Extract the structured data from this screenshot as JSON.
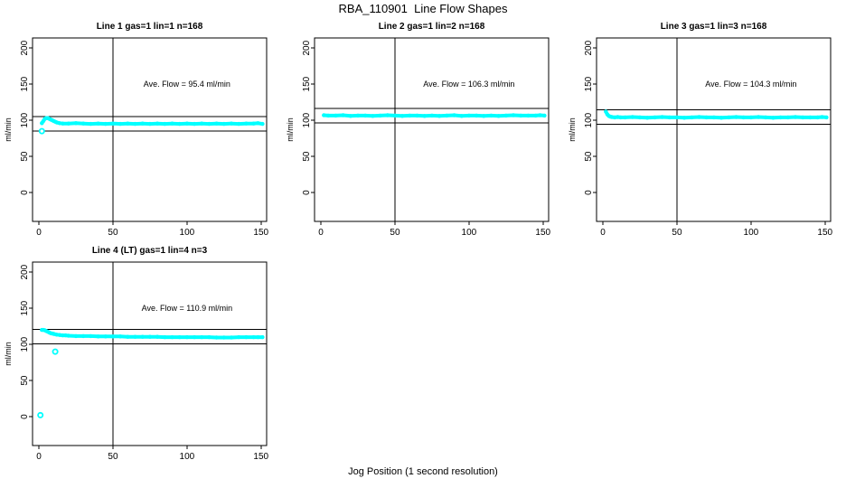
{
  "page": {
    "title": "RBA_110901  Line Flow Shapes",
    "xlabel": "Jog Position (1 second resolution)"
  },
  "colors": {
    "background": "#ffffff",
    "axis": "#000000",
    "text": "#000000",
    "points": "#00ffff"
  },
  "chart_data": [
    {
      "type": "scatter",
      "title": "Line 1 gas=1 lin=1 n=168",
      "ylabel": "ml/min",
      "n": 168,
      "ave_flow": 95.4,
      "ave_flow_label": "Ave. Flow =  95.4  ml/min",
      "annotation_pos": {
        "x": 100,
        "y": 150
      },
      "xlim": [
        -4.3,
        153.8
      ],
      "ylim": [
        -40,
        214
      ],
      "xticks": [
        0,
        50,
        100,
        150
      ],
      "yticks": [
        0,
        50,
        100,
        150,
        200
      ],
      "grid": false,
      "legend": "none",
      "vline_x": 50,
      "hlines": [
        105.4,
        85.4
      ],
      "band": [
        [
          2,
          96
        ],
        [
          3,
          99
        ],
        [
          4,
          102
        ],
        [
          5,
          103
        ],
        [
          6,
          103
        ],
        [
          7,
          102
        ],
        [
          8,
          101
        ],
        [
          9,
          100
        ],
        [
          10,
          99
        ],
        [
          11,
          98
        ],
        [
          12,
          97
        ],
        [
          14,
          96
        ],
        [
          16,
          95.5
        ],
        [
          20,
          95.5
        ],
        [
          25,
          96
        ],
        [
          30,
          95.5
        ],
        [
          35,
          95
        ],
        [
          40,
          95.5
        ],
        [
          45,
          95
        ],
        [
          50,
          95.5
        ],
        [
          55,
          95
        ],
        [
          60,
          95.5
        ],
        [
          65,
          95
        ],
        [
          70,
          95.5
        ],
        [
          75,
          95
        ],
        [
          80,
          95.5
        ],
        [
          85,
          95
        ],
        [
          90,
          95.5
        ],
        [
          95,
          95
        ],
        [
          100,
          95.5
        ],
        [
          105,
          95
        ],
        [
          110,
          95.5
        ],
        [
          115,
          95
        ],
        [
          120,
          95.5
        ],
        [
          125,
          95
        ],
        [
          130,
          95.5
        ],
        [
          135,
          95
        ],
        [
          140,
          95.5
        ],
        [
          145,
          95.5
        ],
        [
          148,
          96
        ],
        [
          151,
          95
        ]
      ],
      "outliers": [
        [
          2,
          85
        ]
      ]
    },
    {
      "type": "scatter",
      "title": "Line 2 gas=1 lin=2 n=168",
      "ylabel": "ml/min",
      "n": 168,
      "ave_flow": 106.3,
      "ave_flow_label": "Ave. Flow =  106.3  ml/min",
      "annotation_pos": {
        "x": 100,
        "y": 150
      },
      "xlim": [
        -4.3,
        153.8
      ],
      "ylim": [
        -40,
        214
      ],
      "xticks": [
        0,
        50,
        100,
        150
      ],
      "yticks": [
        0,
        50,
        100,
        150,
        200
      ],
      "grid": false,
      "legend": "none",
      "vline_x": 50,
      "hlines": [
        116.3,
        96.3
      ],
      "band": [
        [
          2,
          107
        ],
        [
          5,
          106.5
        ],
        [
          10,
          106.5
        ],
        [
          15,
          107
        ],
        [
          20,
          106
        ],
        [
          25,
          106.5
        ],
        [
          30,
          106.5
        ],
        [
          35,
          106
        ],
        [
          40,
          106.5
        ],
        [
          45,
          107
        ],
        [
          50,
          106.5
        ],
        [
          55,
          106
        ],
        [
          60,
          106.5
        ],
        [
          65,
          106.5
        ],
        [
          70,
          106
        ],
        [
          75,
          106.5
        ],
        [
          80,
          106
        ],
        [
          85,
          106.5
        ],
        [
          90,
          107
        ],
        [
          95,
          106
        ],
        [
          100,
          106.5
        ],
        [
          105,
          106.5
        ],
        [
          110,
          106
        ],
        [
          115,
          106.5
        ],
        [
          120,
          106
        ],
        [
          125,
          106.5
        ],
        [
          130,
          107
        ],
        [
          135,
          106.5
        ],
        [
          140,
          106.5
        ],
        [
          145,
          106.5
        ],
        [
          148,
          107
        ],
        [
          151,
          106.5
        ]
      ],
      "outliers": []
    },
    {
      "type": "scatter",
      "title": "Line 3 gas=1 lin=3 n=168",
      "ylabel": "ml/min",
      "n": 168,
      "ave_flow": 104.3,
      "ave_flow_label": "Ave. Flow =  104.3  ml/min",
      "annotation_pos": {
        "x": 100,
        "y": 150
      },
      "xlim": [
        -4.3,
        153.8
      ],
      "ylim": [
        -40,
        214
      ],
      "xticks": [
        0,
        50,
        100,
        150
      ],
      "yticks": [
        0,
        50,
        100,
        150,
        200
      ],
      "grid": false,
      "legend": "none",
      "vline_x": 50,
      "hlines": [
        114.3,
        94.3
      ],
      "band": [
        [
          2,
          112
        ],
        [
          3,
          108
        ],
        [
          4,
          106
        ],
        [
          5,
          105
        ],
        [
          6,
          104.5
        ],
        [
          8,
          104
        ],
        [
          10,
          104.5
        ],
        [
          12,
          104
        ],
        [
          15,
          104
        ],
        [
          20,
          104.5
        ],
        [
          25,
          104
        ],
        [
          30,
          103.5
        ],
        [
          35,
          104
        ],
        [
          40,
          104.5
        ],
        [
          45,
          104
        ],
        [
          50,
          104
        ],
        [
          55,
          103.5
        ],
        [
          60,
          104
        ],
        [
          65,
          104.5
        ],
        [
          70,
          104
        ],
        [
          75,
          104
        ],
        [
          80,
          103.5
        ],
        [
          85,
          104
        ],
        [
          90,
          104.5
        ],
        [
          95,
          104
        ],
        [
          100,
          104
        ],
        [
          105,
          104.5
        ],
        [
          110,
          104
        ],
        [
          115,
          103.5
        ],
        [
          120,
          104
        ],
        [
          125,
          104
        ],
        [
          130,
          104.5
        ],
        [
          135,
          104
        ],
        [
          140,
          104
        ],
        [
          145,
          104
        ],
        [
          148,
          104.5
        ],
        [
          151,
          104
        ]
      ],
      "outliers": []
    },
    {
      "type": "scatter",
      "title": "Line 4 (LT) gas=1 lin=4 n=3",
      "ylabel": "ml/min",
      "n": 3,
      "ave_flow": 110.9,
      "ave_flow_label": "Ave. Flow =  110.9  ml/min",
      "annotation_pos": {
        "x": 100,
        "y": 150
      },
      "xlim": [
        -4.3,
        153.8
      ],
      "ylim": [
        -40,
        214
      ],
      "xticks": [
        0,
        50,
        100,
        150
      ],
      "yticks": [
        0,
        50,
        100,
        150,
        200
      ],
      "grid": false,
      "legend": "none",
      "vline_x": 50,
      "hlines": [
        120.9,
        100.9
      ],
      "band": [
        [
          2,
          120
        ],
        [
          3,
          120
        ],
        [
          4,
          119.5
        ],
        [
          5,
          118.5
        ],
        [
          6,
          117.5
        ],
        [
          7,
          116.5
        ],
        [
          8,
          115.5
        ],
        [
          9,
          115
        ],
        [
          10,
          114.5
        ],
        [
          12,
          113.5
        ],
        [
          14,
          113
        ],
        [
          16,
          112.5
        ],
        [
          18,
          112.5
        ],
        [
          20,
          112
        ],
        [
          25,
          111.5
        ],
        [
          30,
          111.5
        ],
        [
          35,
          111.5
        ],
        [
          40,
          111
        ],
        [
          45,
          111
        ],
        [
          50,
          111
        ],
        [
          55,
          111
        ],
        [
          60,
          110.5
        ],
        [
          65,
          110.5
        ],
        [
          70,
          110.5
        ],
        [
          75,
          110.5
        ],
        [
          80,
          110.5
        ],
        [
          85,
          110
        ],
        [
          90,
          110
        ],
        [
          95,
          110
        ],
        [
          100,
          110
        ],
        [
          105,
          110
        ],
        [
          110,
          110
        ],
        [
          115,
          110
        ],
        [
          120,
          109.5
        ],
        [
          125,
          109.5
        ],
        [
          130,
          109.5
        ],
        [
          135,
          110
        ],
        [
          140,
          110
        ],
        [
          145,
          110
        ],
        [
          148,
          110
        ],
        [
          151,
          110
        ]
      ],
      "outliers": [
        [
          1,
          2
        ],
        [
          11,
          90
        ]
      ]
    }
  ]
}
